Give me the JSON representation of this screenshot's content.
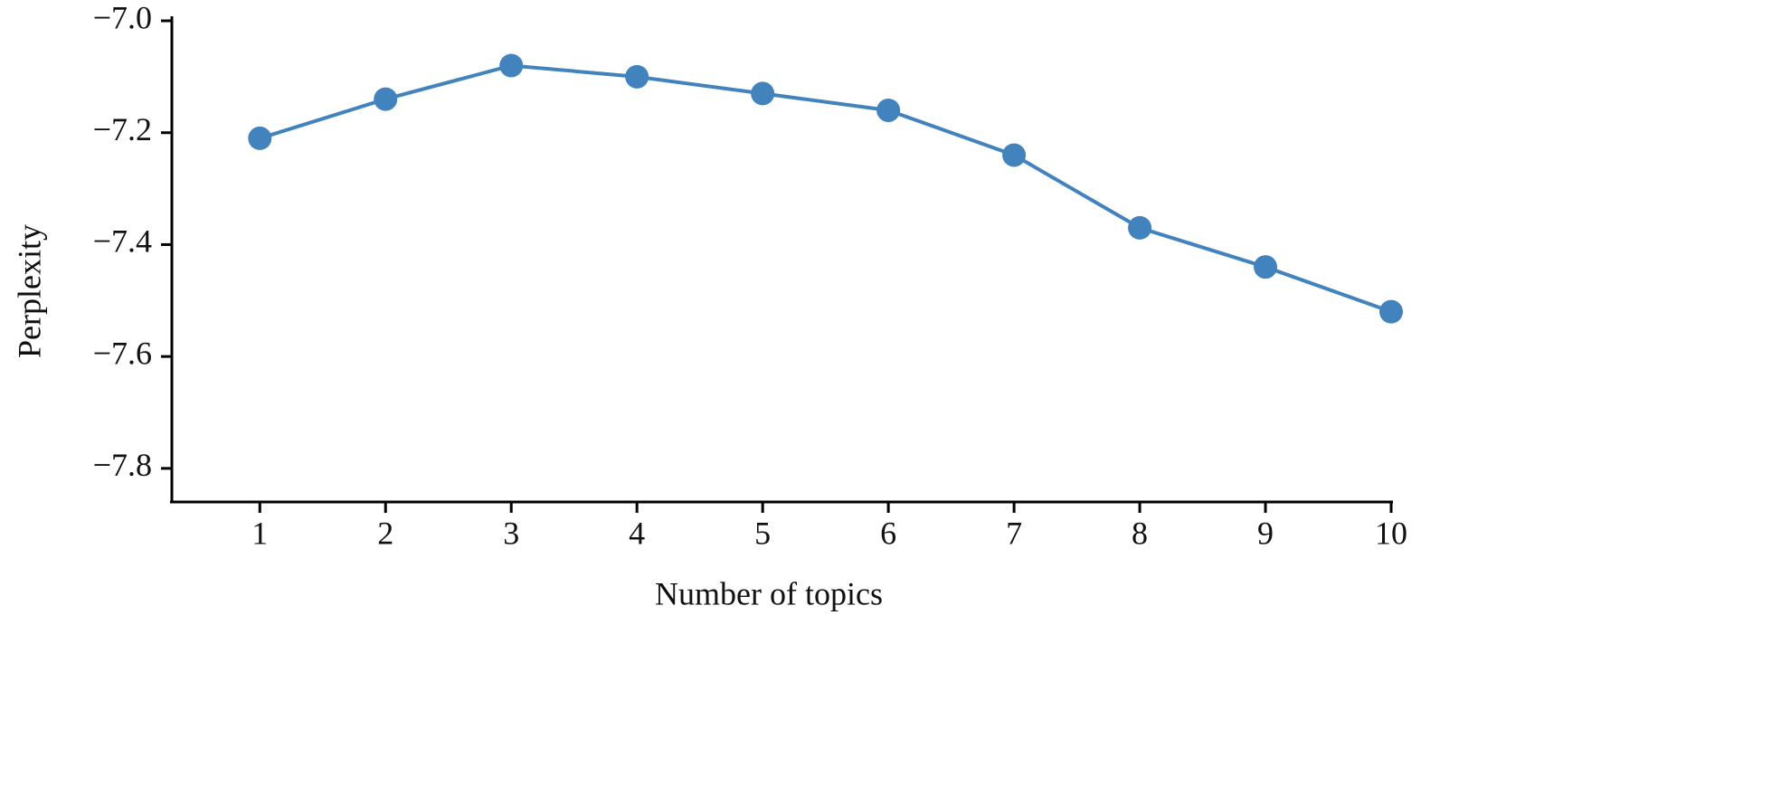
{
  "chart_data": {
    "type": "line",
    "x_label": "Number of topics",
    "y_label": "Perplexity",
    "x": [
      1,
      2,
      3,
      4,
      5,
      6,
      7,
      8,
      9,
      10
    ],
    "values": [
      -7.21,
      -7.14,
      -7.08,
      -7.1,
      -7.13,
      -7.16,
      -7.24,
      -7.37,
      -7.44,
      -7.52
    ],
    "color": "#4282bd",
    "xlim": [
      0.3,
      10
    ],
    "xticks": [
      1,
      2,
      3,
      4,
      5,
      6,
      7,
      8,
      9,
      10
    ],
    "ylim": [
      -7.86,
      -7.0
    ],
    "yticks": [
      {
        "value": -7.0,
        "label": "−7.0"
      },
      {
        "value": -7.2,
        "label": "−7.2"
      },
      {
        "value": -7.4,
        "label": "−7.4"
      },
      {
        "value": -7.6,
        "label": "−7.6"
      },
      {
        "value": -7.8,
        "label": "−7.8"
      }
    ],
    "grid": false
  }
}
